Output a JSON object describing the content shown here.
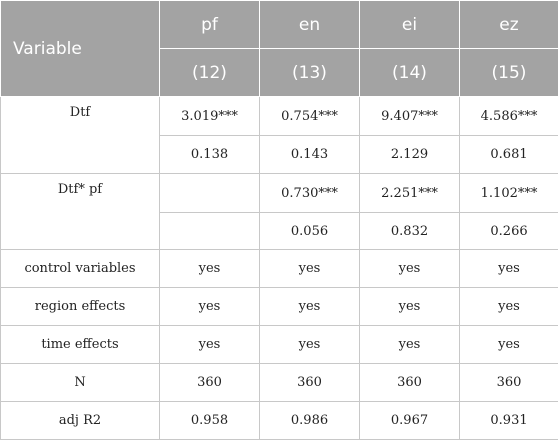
{
  "header": {
    "variable_label": "Variable",
    "columns": [
      {
        "name": "pf",
        "model": "(12)"
      },
      {
        "name": "en",
        "model": "(13)"
      },
      {
        "name": "ei",
        "model": "(14)"
      },
      {
        "name": "ez",
        "model": "(15)"
      }
    ]
  },
  "rows": {
    "dtf": {
      "label": "Dtf",
      "coef": [
        "3.019***",
        "0.754***",
        "9.407***",
        "4.586***"
      ],
      "se": [
        "0.138",
        "0.143",
        "2.129",
        "0.681"
      ]
    },
    "interaction": {
      "label": "Dtf* pf",
      "coef": [
        "",
        "0.730***",
        "2.251***",
        "1.102***"
      ],
      "se": [
        "",
        "0.056",
        "0.832",
        "0.266"
      ]
    },
    "control": {
      "label": "control variables",
      "values": [
        "yes",
        "yes",
        "yes",
        "yes"
      ]
    },
    "region": {
      "label": "region effects",
      "values": [
        "yes",
        "yes",
        "yes",
        "yes"
      ]
    },
    "time": {
      "label": "time effects",
      "values": [
        "yes",
        "yes",
        "yes",
        "yes"
      ]
    },
    "n": {
      "label": "N",
      "values": [
        "360",
        "360",
        "360",
        "360"
      ]
    },
    "adjr2": {
      "label": "adj R2",
      "values": [
        "0.958",
        "0.986",
        "0.967",
        "0.931"
      ]
    }
  },
  "colors": {
    "header_bg": "#a3a3a3",
    "header_text": "#ffffff",
    "grid": "#c8c8c8"
  }
}
